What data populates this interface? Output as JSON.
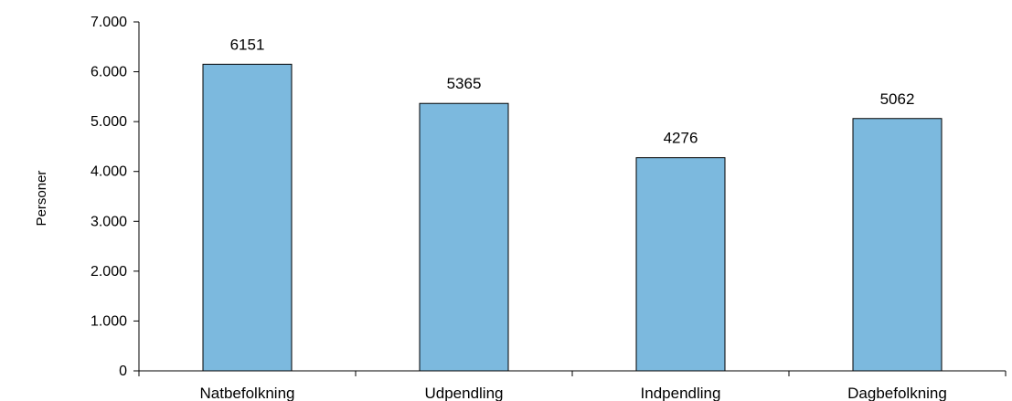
{
  "chart_data": {
    "type": "bar",
    "categories": [
      "Natbefolkning",
      "Udpendling",
      "Indpendling",
      "Dagbefolkning"
    ],
    "values": [
      6151,
      5365,
      4276,
      5062
    ],
    "data_labels": [
      "6151",
      "5365",
      "4276",
      "5062"
    ],
    "title": "",
    "xlabel": "",
    "ylabel": "Personer",
    "ylim": [
      0,
      7000
    ],
    "yticks": [
      0,
      1000,
      2000,
      3000,
      4000,
      5000,
      6000,
      7000
    ],
    "ytick_labels": [
      "0",
      "1.000",
      "2.000",
      "3.000",
      "4.000",
      "5.000",
      "6.000",
      "7.000"
    ],
    "grid": false,
    "legend": "none",
    "bar_color": "#7cb9de",
    "bar_edge_color": "#000000"
  }
}
